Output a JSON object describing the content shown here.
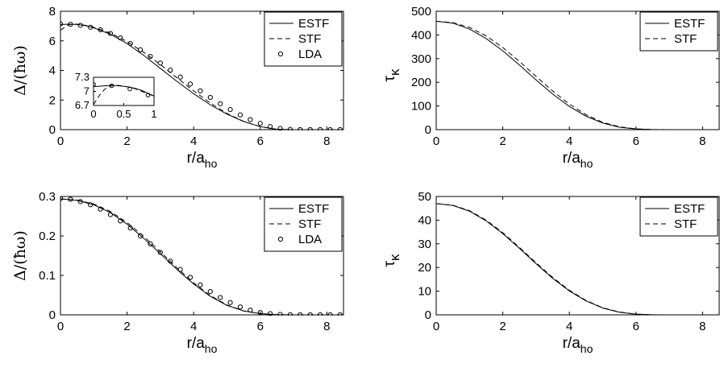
{
  "chart_data": [
    {
      "type": "line",
      "xlabel": "r/a",
      "xlabel_sub": "ho",
      "ylabel": "Δ/(ħω)",
      "xlim": [
        0,
        8.5
      ],
      "ylim": [
        0,
        8
      ],
      "xticks": [
        "0",
        "2",
        "4",
        "6",
        "8"
      ],
      "yticks": [
        "0",
        "2",
        "4",
        "6",
        "8"
      ],
      "legend": {
        "position": "top-right",
        "entries": [
          "ESTF",
          "STF",
          "LDA"
        ]
      },
      "grid": false,
      "series": [
        {
          "name": "ESTF",
          "style": "solid",
          "x": [
            0,
            0.25,
            0.5,
            0.75,
            1,
            1.5,
            2,
            2.5,
            3,
            3.5,
            4,
            4.5,
            5,
            5.5,
            6,
            6.5,
            7,
            7.5,
            8,
            8.5
          ],
          "y": [
            7.1,
            7.13,
            7.11,
            7.03,
            6.88,
            6.45,
            5.82,
            5.02,
            4.14,
            3.26,
            2.43,
            1.68,
            1.05,
            0.55,
            0.2,
            0.03,
            0.0,
            0.0,
            0.0,
            0.0
          ]
        },
        {
          "name": "STF",
          "style": "dashed",
          "x": [
            0,
            0.25,
            0.5,
            0.75,
            1,
            1.5,
            2,
            2.5,
            3,
            3.5,
            4,
            4.5,
            5,
            5.5,
            6,
            6.5,
            7,
            7.5,
            8,
            8.5
          ],
          "y": [
            6.72,
            7.1,
            7.13,
            7.05,
            6.92,
            6.52,
            5.95,
            5.23,
            4.4,
            3.5,
            2.62,
            1.8,
            1.1,
            0.56,
            0.2,
            0.02,
            0.0,
            0.0,
            0.0,
            0.0
          ]
        },
        {
          "name": "LDA",
          "style": "markers",
          "x": [
            0,
            0.3,
            0.6,
            0.9,
            1.2,
            1.5,
            1.8,
            2.1,
            2.4,
            2.7,
            3.0,
            3.3,
            3.6,
            3.9,
            4.2,
            4.5,
            4.8,
            5.1,
            5.4,
            5.7,
            6.0,
            6.3,
            6.6,
            6.9,
            7.2,
            7.5,
            7.8,
            8.1,
            8.4
          ],
          "y": [
            7.15,
            7.12,
            7.05,
            6.92,
            6.75,
            6.5,
            6.2,
            5.82,
            5.4,
            4.95,
            4.5,
            4.02,
            3.55,
            3.08,
            2.62,
            2.18,
            1.75,
            1.36,
            1.0,
            0.68,
            0.42,
            0.21,
            0.08,
            0.02,
            0.0,
            0.0,
            0.0,
            0.0,
            0.0
          ]
        }
      ],
      "inset": {
        "xlim": [
          0,
          1
        ],
        "ylim": [
          6.7,
          7.3
        ],
        "xticks": [
          "0",
          "0.5",
          "1"
        ],
        "yticks": [
          "6.7",
          "7",
          "7.3"
        ],
        "series": [
          {
            "name": "ESTF",
            "style": "solid",
            "x": [
              0,
              0.1,
              0.2,
              0.3,
              0.4,
              0.5,
              0.6,
              0.7,
              0.8,
              0.9,
              1.0
            ],
            "y": [
              7.1,
              7.11,
              7.12,
              7.13,
              7.12,
              7.11,
              7.09,
              7.06,
              7.02,
              6.96,
              6.9
            ]
          },
          {
            "name": "STF",
            "style": "dashed",
            "x": [
              0,
              0.05,
              0.1,
              0.15,
              0.2,
              0.25,
              0.3,
              0.4,
              0.5,
              0.6,
              0.7,
              0.8,
              0.9,
              1.0
            ],
            "y": [
              6.72,
              6.82,
              6.92,
              7.0,
              7.06,
              7.1,
              7.12,
              7.13,
              7.11,
              7.09,
              7.05,
              7.0,
              6.95,
              6.9
            ]
          },
          {
            "name": "LDA",
            "style": "markers",
            "x": [
              0,
              0.3,
              0.6,
              0.9
            ],
            "y": [
              7.15,
              7.12,
              7.05,
              6.92
            ]
          }
        ]
      }
    },
    {
      "type": "line",
      "xlabel": "r/a",
      "xlabel_sub": "ho",
      "ylabel": "τ",
      "ylabel_sub": "κ",
      "xlim": [
        0,
        8.5
      ],
      "ylim": [
        0,
        500
      ],
      "xticks": [
        "0",
        "2",
        "4",
        "6",
        "8"
      ],
      "yticks": [
        "0",
        "100",
        "200",
        "300",
        "400",
        "500"
      ],
      "legend": {
        "position": "top-right",
        "entries": [
          "ESTF",
          "STF"
        ]
      },
      "grid": false,
      "series": [
        {
          "name": "ESTF",
          "style": "solid",
          "x": [
            0,
            0.5,
            1,
            1.5,
            2,
            2.5,
            3,
            3.5,
            4,
            4.5,
            5,
            5.5,
            6,
            6.5,
            7,
            7.5,
            8,
            8.5
          ],
          "y": [
            458,
            450,
            425,
            385,
            333,
            273,
            210,
            150,
            98,
            57,
            28,
            10,
            3,
            0.5,
            0,
            0,
            0,
            0
          ]
        },
        {
          "name": "STF",
          "style": "dashed",
          "x": [
            0,
            0.5,
            1,
            1.5,
            2,
            2.5,
            3,
            3.5,
            4,
            4.5,
            5,
            5.5,
            6,
            6.5,
            7,
            7.5,
            8,
            8.5
          ],
          "y": [
            458,
            452,
            432,
            396,
            347,
            288,
            225,
            163,
            108,
            63,
            31,
            12,
            3,
            0.5,
            0,
            0,
            0,
            0
          ]
        }
      ]
    },
    {
      "type": "line",
      "xlabel": "r/a",
      "xlabel_sub": "ho",
      "ylabel": "Δ/(ħω)",
      "xlim": [
        0,
        8.5
      ],
      "ylim": [
        0,
        0.3
      ],
      "xticks": [
        "0",
        "2",
        "4",
        "6",
        "8"
      ],
      "yticks": [
        "0",
        "0.1",
        "0.2",
        "0.3"
      ],
      "legend": {
        "position": "top-right",
        "entries": [
          "ESTF",
          "STF",
          "LDA"
        ]
      },
      "grid": false,
      "series": [
        {
          "name": "ESTF",
          "style": "solid",
          "x": [
            0,
            0.5,
            1,
            1.5,
            2,
            2.5,
            3,
            3.5,
            4,
            4.5,
            5,
            5.5,
            6,
            6.5,
            7,
            7.5,
            8,
            8.5
          ],
          "y": [
            0.294,
            0.29,
            0.279,
            0.259,
            0.23,
            0.194,
            0.155,
            0.115,
            0.078,
            0.047,
            0.024,
            0.01,
            0.003,
            0.0005,
            0,
            0,
            0,
            0
          ]
        },
        {
          "name": "STF",
          "style": "dashed",
          "x": [
            0,
            0.5,
            1,
            1.5,
            2,
            2.5,
            3,
            3.5,
            4,
            4.5,
            5,
            5.5,
            6,
            6.5,
            7,
            7.5,
            8,
            8.5
          ],
          "y": [
            0.294,
            0.291,
            0.281,
            0.262,
            0.234,
            0.199,
            0.16,
            0.119,
            0.081,
            0.049,
            0.025,
            0.01,
            0.003,
            0.0005,
            0,
            0,
            0,
            0
          ]
        },
        {
          "name": "LDA",
          "style": "markers",
          "x": [
            0,
            0.3,
            0.6,
            0.9,
            1.2,
            1.5,
            1.8,
            2.1,
            2.4,
            2.7,
            3.0,
            3.3,
            3.6,
            3.9,
            4.2,
            4.5,
            4.8,
            5.1,
            5.4,
            5.7,
            6.0,
            6.3,
            6.6,
            6.9,
            7.2,
            7.5,
            7.8,
            8.1,
            8.4
          ],
          "y": [
            0.295,
            0.293,
            0.287,
            0.279,
            0.268,
            0.254,
            0.238,
            0.22,
            0.2,
            0.18,
            0.158,
            0.136,
            0.115,
            0.095,
            0.076,
            0.059,
            0.044,
            0.031,
            0.02,
            0.012,
            0.006,
            0.003,
            0.001,
            0.0003,
            0,
            0,
            0,
            0,
            0
          ]
        }
      ]
    },
    {
      "type": "line",
      "xlabel": "r/a",
      "xlabel_sub": "ho",
      "ylabel": "τ",
      "ylabel_sub": "κ",
      "xlim": [
        0,
        8.5
      ],
      "ylim": [
        0,
        50
      ],
      "xticks": [
        "0",
        "2",
        "4",
        "6",
        "8"
      ],
      "yticks": [
        "0",
        "10",
        "20",
        "30",
        "40",
        "50"
      ],
      "legend": {
        "position": "top-right",
        "entries": [
          "ESTF",
          "STF"
        ]
      },
      "grid": false,
      "series": [
        {
          "name": "ESTF",
          "style": "solid",
          "x": [
            0,
            0.5,
            1,
            1.5,
            2,
            2.5,
            3,
            3.5,
            4,
            4.5,
            5,
            5.5,
            6,
            6.5,
            7,
            7.5,
            8,
            8.5
          ],
          "y": [
            47.0,
            46.2,
            43.8,
            39.7,
            34.3,
            28.1,
            21.6,
            15.4,
            10.1,
            5.9,
            2.9,
            1.1,
            0.3,
            0.05,
            0,
            0,
            0,
            0
          ]
        },
        {
          "name": "STF",
          "style": "dashed",
          "x": [
            0,
            0.5,
            1,
            1.5,
            2,
            2.5,
            3,
            3.5,
            4,
            4.5,
            5,
            5.5,
            6,
            6.5,
            7,
            7.5,
            8,
            8.5
          ],
          "y": [
            47.0,
            46.3,
            44.0,
            40.0,
            34.7,
            28.5,
            22.0,
            15.8,
            10.4,
            6.1,
            3.0,
            1.2,
            0.3,
            0.05,
            0,
            0,
            0,
            0
          ]
        }
      ]
    }
  ]
}
